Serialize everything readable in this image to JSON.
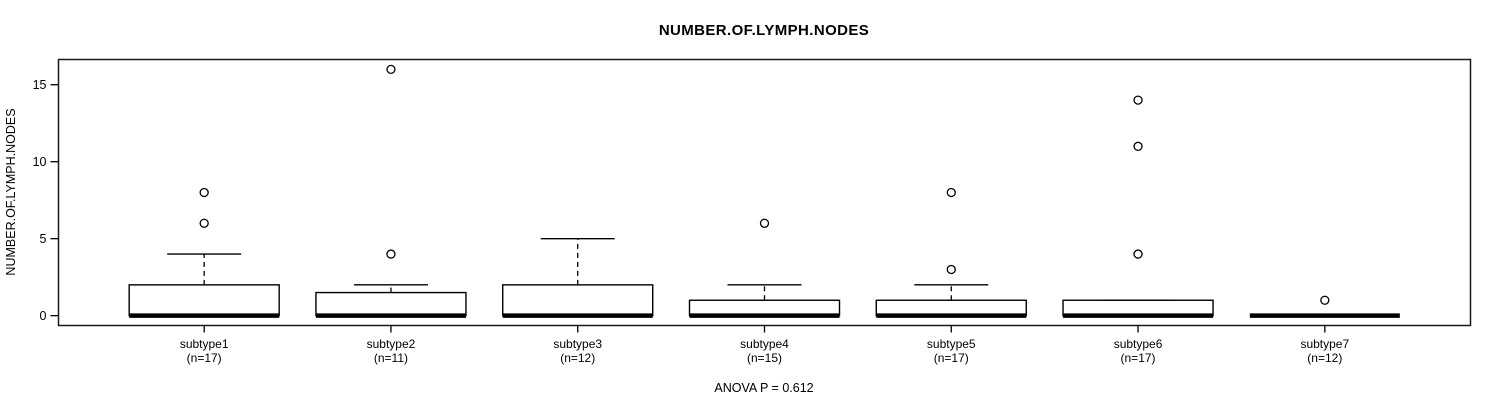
{
  "chart_data": {
    "type": "boxplot",
    "title": "NUMBER.OF.LYMPH.NODES",
    "ylabel": "NUMBER.OF.LYMPH.NODES",
    "footer_note": "ANOVA P = 0.612",
    "yticks": [
      0,
      5,
      10,
      15
    ],
    "ylim": [
      -0.64,
      16.64
    ],
    "grid": false,
    "legend": null,
    "groups": [
      {
        "label": "subtype1",
        "sublabel": "(n=17)",
        "n": 17,
        "q1": 0,
        "median": 0,
        "q3": 2,
        "whisker_low": 0,
        "whisker_high": 4,
        "outliers": [
          6,
          8
        ]
      },
      {
        "label": "subtype2",
        "sublabel": "(n=11)",
        "n": 11,
        "q1": 0,
        "median": 0,
        "q3": 1.5,
        "whisker_low": 0,
        "whisker_high": 2,
        "outliers": [
          4,
          16
        ]
      },
      {
        "label": "subtype3",
        "sublabel": "(n=12)",
        "n": 12,
        "q1": 0,
        "median": 0,
        "q3": 2,
        "whisker_low": 0,
        "whisker_high": 5,
        "outliers": []
      },
      {
        "label": "subtype4",
        "sublabel": "(n=15)",
        "n": 15,
        "q1": 0,
        "median": 0,
        "q3": 1,
        "whisker_low": 0,
        "whisker_high": 2,
        "outliers": [
          6
        ]
      },
      {
        "label": "subtype5",
        "sublabel": "(n=17)",
        "n": 17,
        "q1": 0,
        "median": 0,
        "q3": 1,
        "whisker_low": 0,
        "whisker_high": 2,
        "outliers": [
          3,
          8
        ]
      },
      {
        "label": "subtype6",
        "sublabel": "(n=17)",
        "n": 17,
        "q1": 0,
        "median": 0,
        "q3": 1,
        "whisker_low": 0,
        "whisker_high": 1,
        "outliers": [
          4,
          11,
          14
        ]
      },
      {
        "label": "subtype7",
        "sublabel": "(n=12)",
        "n": 12,
        "q1": 0,
        "median": 0,
        "q3": 0,
        "whisker_low": 0,
        "whisker_high": 0,
        "outliers": [
          1
        ]
      }
    ],
    "colors": {
      "line": "#000000",
      "frame": "#1a1a1a",
      "background": "#ffffff"
    }
  }
}
